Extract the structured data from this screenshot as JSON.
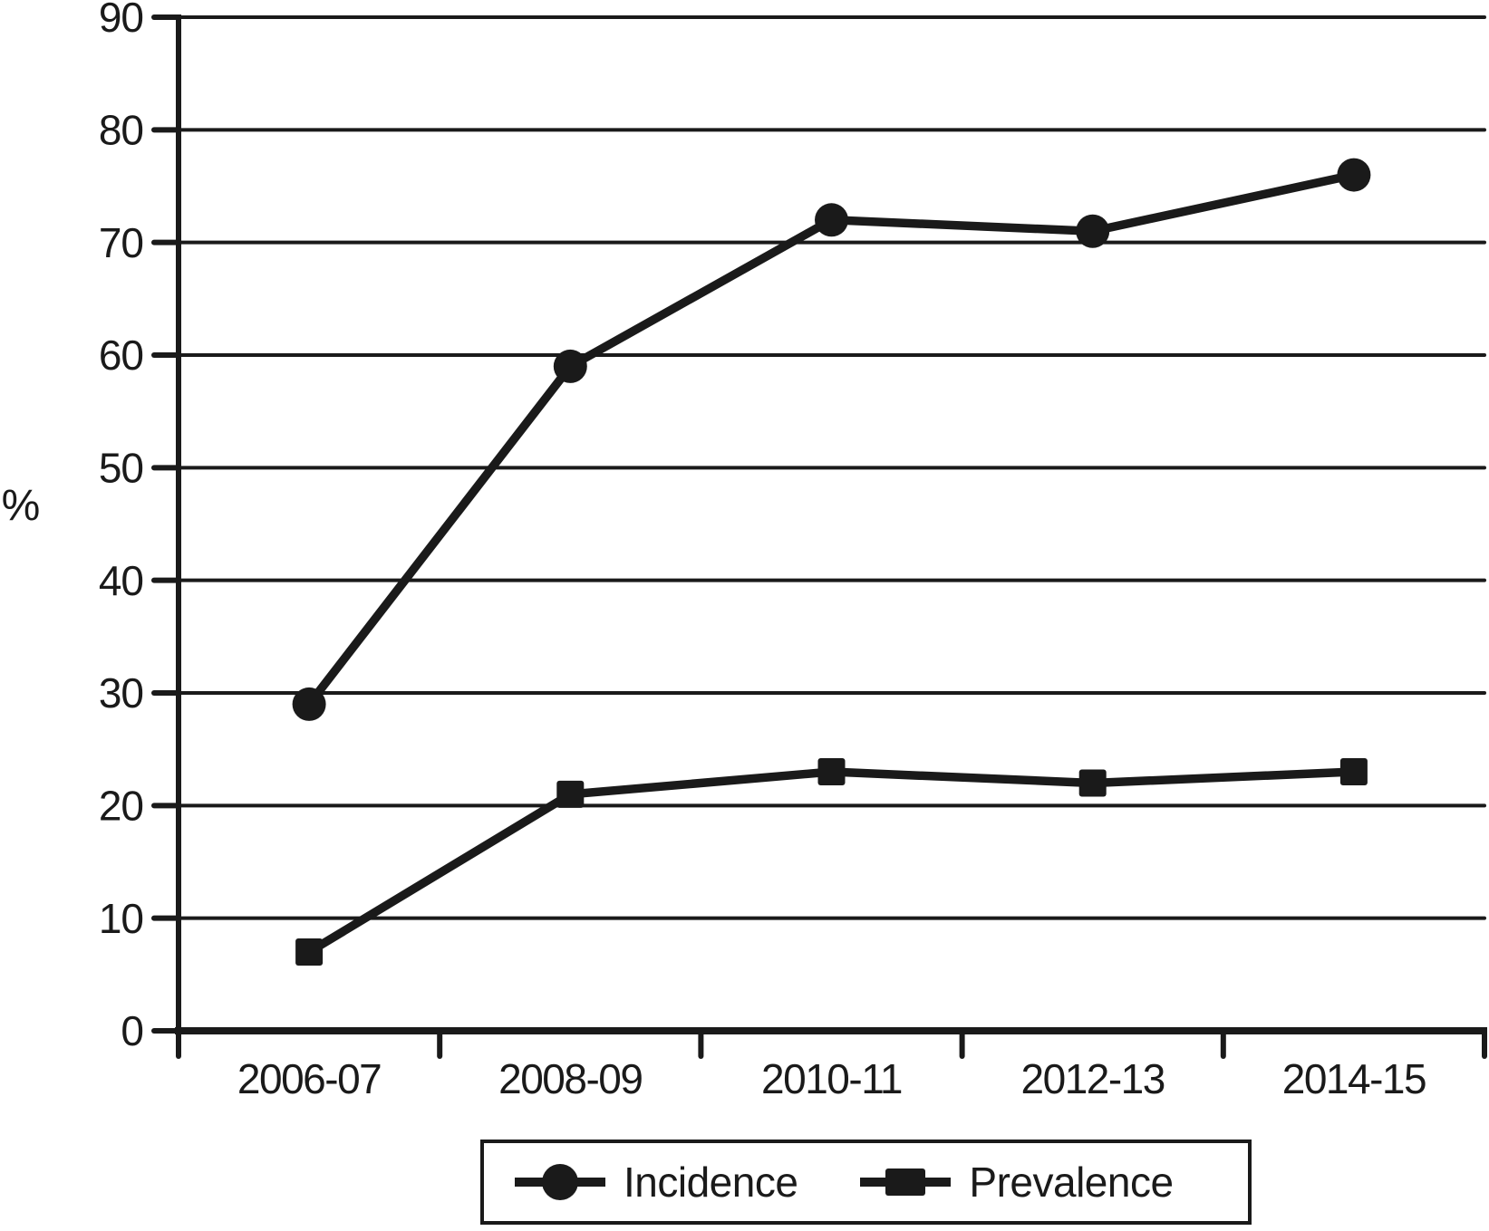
{
  "figure": {
    "background": "#ffffff",
    "ink_color": "#1a1a1a"
  },
  "chart_data": {
    "type": "line",
    "title": "",
    "xlabel": "",
    "ylabel": "%",
    "categories": [
      "2006-07",
      "2008-09",
      "2010-11",
      "2012-13",
      "2014-15"
    ],
    "series": [
      {
        "name": "Incidence",
        "marker": "circle",
        "color": "#1a1a1a",
        "values": [
          29,
          59,
          72,
          71,
          76
        ]
      },
      {
        "name": "Prevalence",
        "marker": "square",
        "color": "#1a1a1a",
        "values": [
          7,
          21,
          23,
          22,
          23
        ]
      }
    ],
    "ylim": [
      0,
      90
    ],
    "yticks": [
      0,
      10,
      20,
      30,
      40,
      50,
      60,
      70,
      80,
      90
    ],
    "grid": "horizontal",
    "legend_position": "bottom"
  }
}
